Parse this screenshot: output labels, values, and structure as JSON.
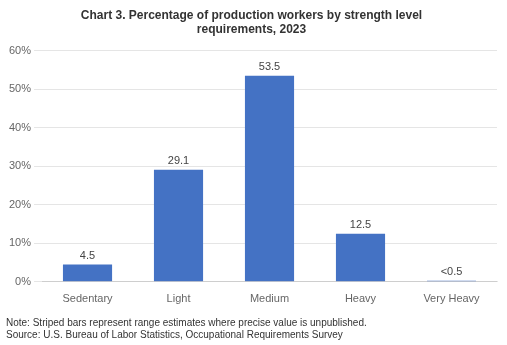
{
  "chart_data": {
    "type": "bar",
    "title": "Chart 3. Percentage of production workers by strength level\nrequirements, 2023",
    "categories": [
      "Sedentary",
      "Light",
      "Medium",
      "Heavy",
      "Very Heavy"
    ],
    "values": [
      4.5,
      29.1,
      53.5,
      12.5,
      0.3
    ],
    "value_labels": [
      "4.5",
      "29.1",
      "53.5",
      "12.5",
      "<0.5"
    ],
    "data_labels": true,
    "color": "#4472C4",
    "ylim": [
      0,
      60
    ],
    "yticks": [
      {
        "value": 0,
        "label": "0%"
      },
      {
        "value": 10,
        "label": "10%"
      },
      {
        "value": 20,
        "label": "20%"
      },
      {
        "value": 30,
        "label": "30%"
      },
      {
        "value": 40,
        "label": "40%"
      },
      {
        "value": 50,
        "label": "50%"
      },
      {
        "value": 60,
        "label": "60%"
      }
    ],
    "grid": true,
    "annotations": [
      "Note: Striped bars represent range estimates where precise value is unpublished.",
      "Source: U.S. Bureau of Labor Statistics, Occupational Requirements Survey"
    ]
  }
}
